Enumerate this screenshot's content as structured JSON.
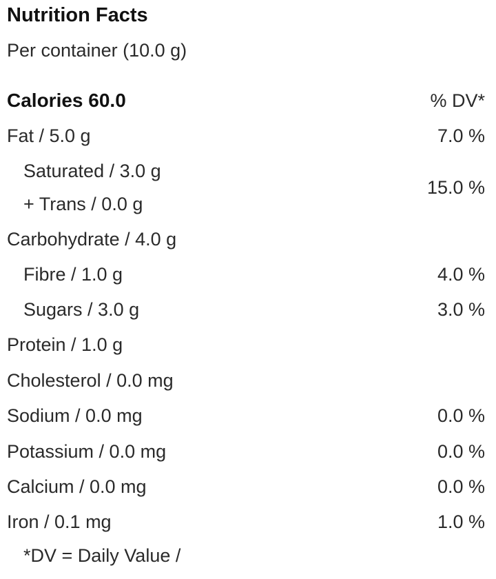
{
  "title": "Nutrition Facts",
  "serving": "Per container (10.0 g)",
  "header": {
    "calories_label": "Calories 60.0",
    "dv_label": "% DV*"
  },
  "rows": [
    {
      "label": "Fat / 5.0 g",
      "dv": "7.0 %"
    },
    {
      "label": "Saturated / 3.0 g",
      "dv": ""
    },
    {
      "label": "+ Trans / 0.0 g",
      "dv": ""
    },
    {
      "label": "Carbohydrate / 4.0 g",
      "dv": ""
    },
    {
      "label": "Fibre / 1.0 g",
      "dv": "4.0 %"
    },
    {
      "label": "Sugars / 3.0 g",
      "dv": "3.0 %"
    },
    {
      "label": "Protein / 1.0 g",
      "dv": ""
    },
    {
      "label": "Cholesterol / 0.0 mg",
      "dv": ""
    },
    {
      "label": "Sodium / 0.0 mg",
      "dv": "0.0 %"
    },
    {
      "label": "Potassium / 0.0 mg",
      "dv": "0.0 %"
    },
    {
      "label": "Calcium / 0.0 mg",
      "dv": "0.0 %"
    },
    {
      "label": "Iron / 0.1 mg",
      "dv": "1.0 %"
    }
  ],
  "saturated_trans_dv": "15.0 %",
  "footnote": "*DV = Daily Value /"
}
